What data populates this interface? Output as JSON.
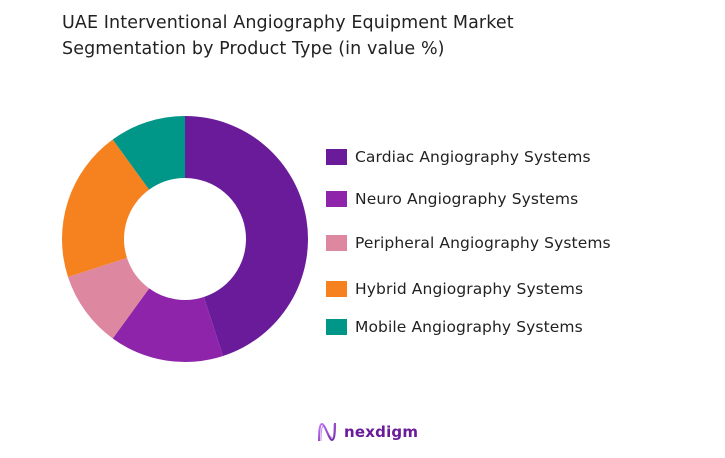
{
  "title": {
    "line1": "UAE Interventional Angiography Equipment Market",
    "line2": "Segmentation by Product Type (in value %)"
  },
  "chart_data": {
    "type": "pie",
    "variant": "donut",
    "title": "UAE Interventional Angiography Equipment Market Segmentation by Product Type (in value %)",
    "categories": [
      "Cardiac Angiography Systems",
      "Neuro Angiography Systems",
      "Peripheral Angiography Systems",
      "Hybrid Angiography Systems",
      "Mobile Angiography Systems"
    ],
    "values": [
      45,
      15,
      10,
      20,
      10
    ],
    "colors": [
      "#6a1b9a",
      "#8e24aa",
      "#de87a0",
      "#f5821f",
      "#009688"
    ],
    "start_angle": "top (12 o'clock), clockwise",
    "legend_position": "right",
    "data_labels": false
  },
  "legend": {
    "items": [
      {
        "label": "Cardiac Angiography Systems",
        "color": "#6a1b9a"
      },
      {
        "label": "Neuro Angiography Systems",
        "color": "#8e24aa"
      },
      {
        "label": "Peripheral Angiography Systems",
        "color": "#de87a0"
      },
      {
        "label": "Hybrid Angiography Systems",
        "color": "#f5821f"
      },
      {
        "label": "Mobile Angiography Systems",
        "color": "#009688"
      }
    ]
  },
  "branding": {
    "logo_icon": "nexdigm-wave-icon",
    "logo_text": "nexdigm"
  }
}
